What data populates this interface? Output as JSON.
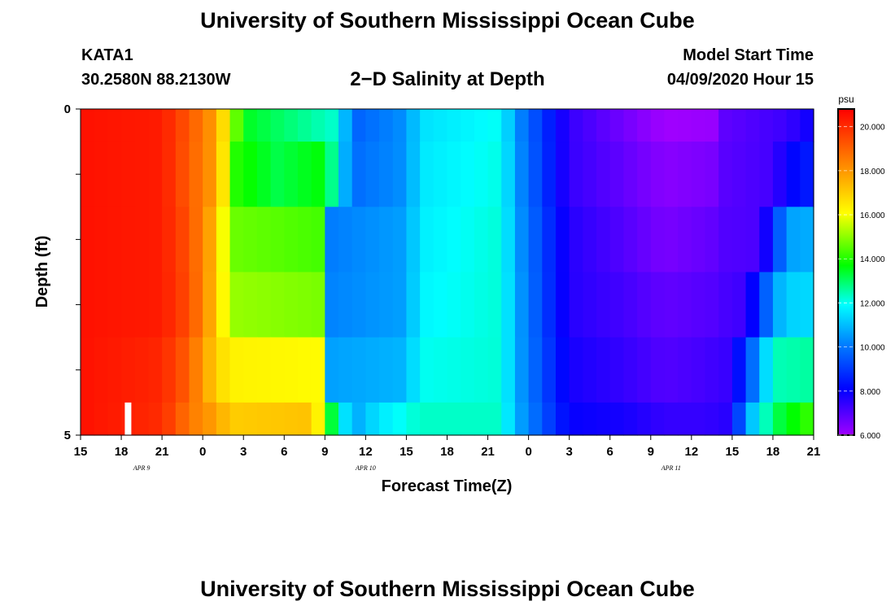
{
  "header": {
    "title": "University of Southern Mississippi Ocean Cube",
    "station": "KATA1",
    "coords": "30.2580N 88.2130W",
    "subtitle": "2−D Salinity at Depth",
    "start_label": "Model Start Time",
    "start_value": "04/09/2020 Hour 15"
  },
  "footer": {
    "title": "University of Southern Mississippi Ocean Cube"
  },
  "chart_data": {
    "type": "heatmap",
    "title": "2−D Salinity at Depth",
    "xlabel": "Forecast Time(Z)",
    "ylabel": "Depth (ft)",
    "x_tick_labels": [
      "15",
      "18",
      "21",
      "0",
      "3",
      "6",
      "9",
      "12",
      "15",
      "18",
      "21",
      "0",
      "3",
      "6",
      "9",
      "12",
      "15",
      "18",
      "21"
    ],
    "x_tick_hours": [
      0,
      3,
      6,
      9,
      12,
      15,
      18,
      21,
      24,
      27,
      30,
      33,
      36,
      39,
      42,
      45,
      48,
      51,
      54
    ],
    "date_labels": [
      {
        "label": "APR  9",
        "hour": 4.5
      },
      {
        "label": "APR  10",
        "hour": 21
      },
      {
        "label": "APR  11",
        "hour": 43.5
      }
    ],
    "xlim": [
      0,
      54
    ],
    "y_tick_labels": [
      "0",
      "5"
    ],
    "ylim": [
      0,
      5
    ],
    "depth_layers": 5,
    "colorbar": {
      "unit": "psu",
      "min": 6.0,
      "max": 20.8,
      "tick_labels": [
        "20.000",
        "18.000",
        "16.000",
        "14.000",
        "12.000",
        "10.000",
        "8.000",
        "6.000"
      ],
      "tick_values": [
        20,
        18,
        16,
        14,
        12,
        10,
        8,
        6
      ]
    },
    "marker": {
      "hour": 3.5,
      "depth_from": 4.5,
      "depth_to": 5.0,
      "color": "#ffffff"
    },
    "layer_keyframes": [
      [
        [
          0,
          20.5
        ],
        [
          6,
          20.3
        ],
        [
          8,
          19.2
        ],
        [
          10,
          17.8
        ],
        [
          12,
          13.5
        ],
        [
          19,
          12.2
        ],
        [
          20,
          9.6
        ],
        [
          24,
          10.4
        ],
        [
          25,
          11.5
        ],
        [
          31,
          12
        ],
        [
          32,
          10.5
        ],
        [
          36,
          7.4
        ],
        [
          40,
          6.6
        ],
        [
          43,
          6.0
        ],
        [
          46.5,
          6.1
        ],
        [
          47,
          6.8
        ],
        [
          52,
          7.3
        ],
        [
          54,
          8.0
        ]
      ],
      [
        [
          0,
          20.5
        ],
        [
          6,
          20.3
        ],
        [
          8,
          19.1
        ],
        [
          10,
          17.8
        ],
        [
          11.5,
          14.0
        ],
        [
          14.5,
          13.2
        ],
        [
          18,
          13.7
        ],
        [
          20,
          9.8
        ],
        [
          24,
          10.4
        ],
        [
          25,
          11.6
        ],
        [
          31,
          12.1
        ],
        [
          32,
          10.6
        ],
        [
          36,
          7.4
        ],
        [
          40,
          6.8
        ],
        [
          43,
          6.3
        ],
        [
          46.5,
          6.5
        ],
        [
          47,
          6.9
        ],
        [
          51,
          7.2
        ],
        [
          52,
          8.0
        ],
        [
          54,
          8.6
        ]
      ],
      [
        [
          0,
          20.5
        ],
        [
          6,
          20.3
        ],
        [
          8,
          19.3
        ],
        [
          10,
          17.3
        ],
        [
          11,
          14.7
        ],
        [
          18,
          14.3
        ],
        [
          18.5,
          10.1
        ],
        [
          24,
          10.6
        ],
        [
          25,
          11.7
        ],
        [
          31,
          12.2
        ],
        [
          32,
          10.7
        ],
        [
          36,
          7.6
        ],
        [
          40,
          7.0
        ],
        [
          43,
          6.5
        ],
        [
          46.5,
          6.8
        ],
        [
          47,
          7.0
        ],
        [
          50,
          7.1
        ],
        [
          51,
          8.6
        ],
        [
          52,
          10.6
        ],
        [
          54,
          10.8
        ]
      ],
      [
        [
          0,
          20.5
        ],
        [
          6,
          20.3
        ],
        [
          8,
          19.4
        ],
        [
          10,
          17.2
        ],
        [
          11,
          15.1
        ],
        [
          18,
          14.8
        ],
        [
          18.5,
          10.2
        ],
        [
          24,
          10.6
        ],
        [
          25,
          11.8
        ],
        [
          31,
          12.2
        ],
        [
          32,
          10.8
        ],
        [
          36,
          7.6
        ],
        [
          40,
          7.2
        ],
        [
          43,
          6.8
        ],
        [
          46.5,
          7.0
        ],
        [
          47,
          7.1
        ],
        [
          49,
          7.3
        ],
        [
          50,
          8.8
        ],
        [
          51,
          10.5
        ],
        [
          52,
          11.3
        ],
        [
          54,
          11.4
        ]
      ],
      [
        [
          0,
          20.5
        ],
        [
          6,
          20.1
        ],
        [
          8,
          19.0
        ],
        [
          10,
          16.9
        ],
        [
          11,
          16.3
        ],
        [
          18,
          16.1
        ],
        [
          18.5,
          10.6
        ],
        [
          24,
          10.9
        ],
        [
          25,
          12.0
        ],
        [
          31,
          12.2
        ],
        [
          32,
          10.8
        ],
        [
          36,
          7.8
        ],
        [
          40,
          7.4
        ],
        [
          43,
          7.0
        ],
        [
          46,
          7.2
        ],
        [
          48,
          7.4
        ],
        [
          49,
          9.2
        ],
        [
          50,
          10.5
        ],
        [
          51,
          12.4
        ],
        [
          54,
          12.6
        ]
      ],
      [
        [
          0,
          20.5
        ],
        [
          6,
          20.0
        ],
        [
          8,
          18.6
        ],
        [
          10,
          17.8
        ],
        [
          11,
          17.0
        ],
        [
          17,
          17.2
        ],
        [
          17.6,
          16.1
        ],
        [
          18,
          14.2
        ],
        [
          20,
          10.6
        ],
        [
          22,
          11.6
        ],
        [
          25,
          12.3
        ],
        [
          31,
          12.3
        ],
        [
          32,
          10.9
        ],
        [
          36,
          8.0
        ],
        [
          40,
          7.8
        ],
        [
          43,
          7.4
        ],
        [
          46,
          7.4
        ],
        [
          48,
          7.6
        ],
        [
          48.5,
          9.2
        ],
        [
          49,
          10.5
        ],
        [
          50,
          11.8
        ],
        [
          51,
          13.0
        ],
        [
          52,
          13.5
        ],
        [
          54,
          14.3
        ]
      ]
    ]
  }
}
